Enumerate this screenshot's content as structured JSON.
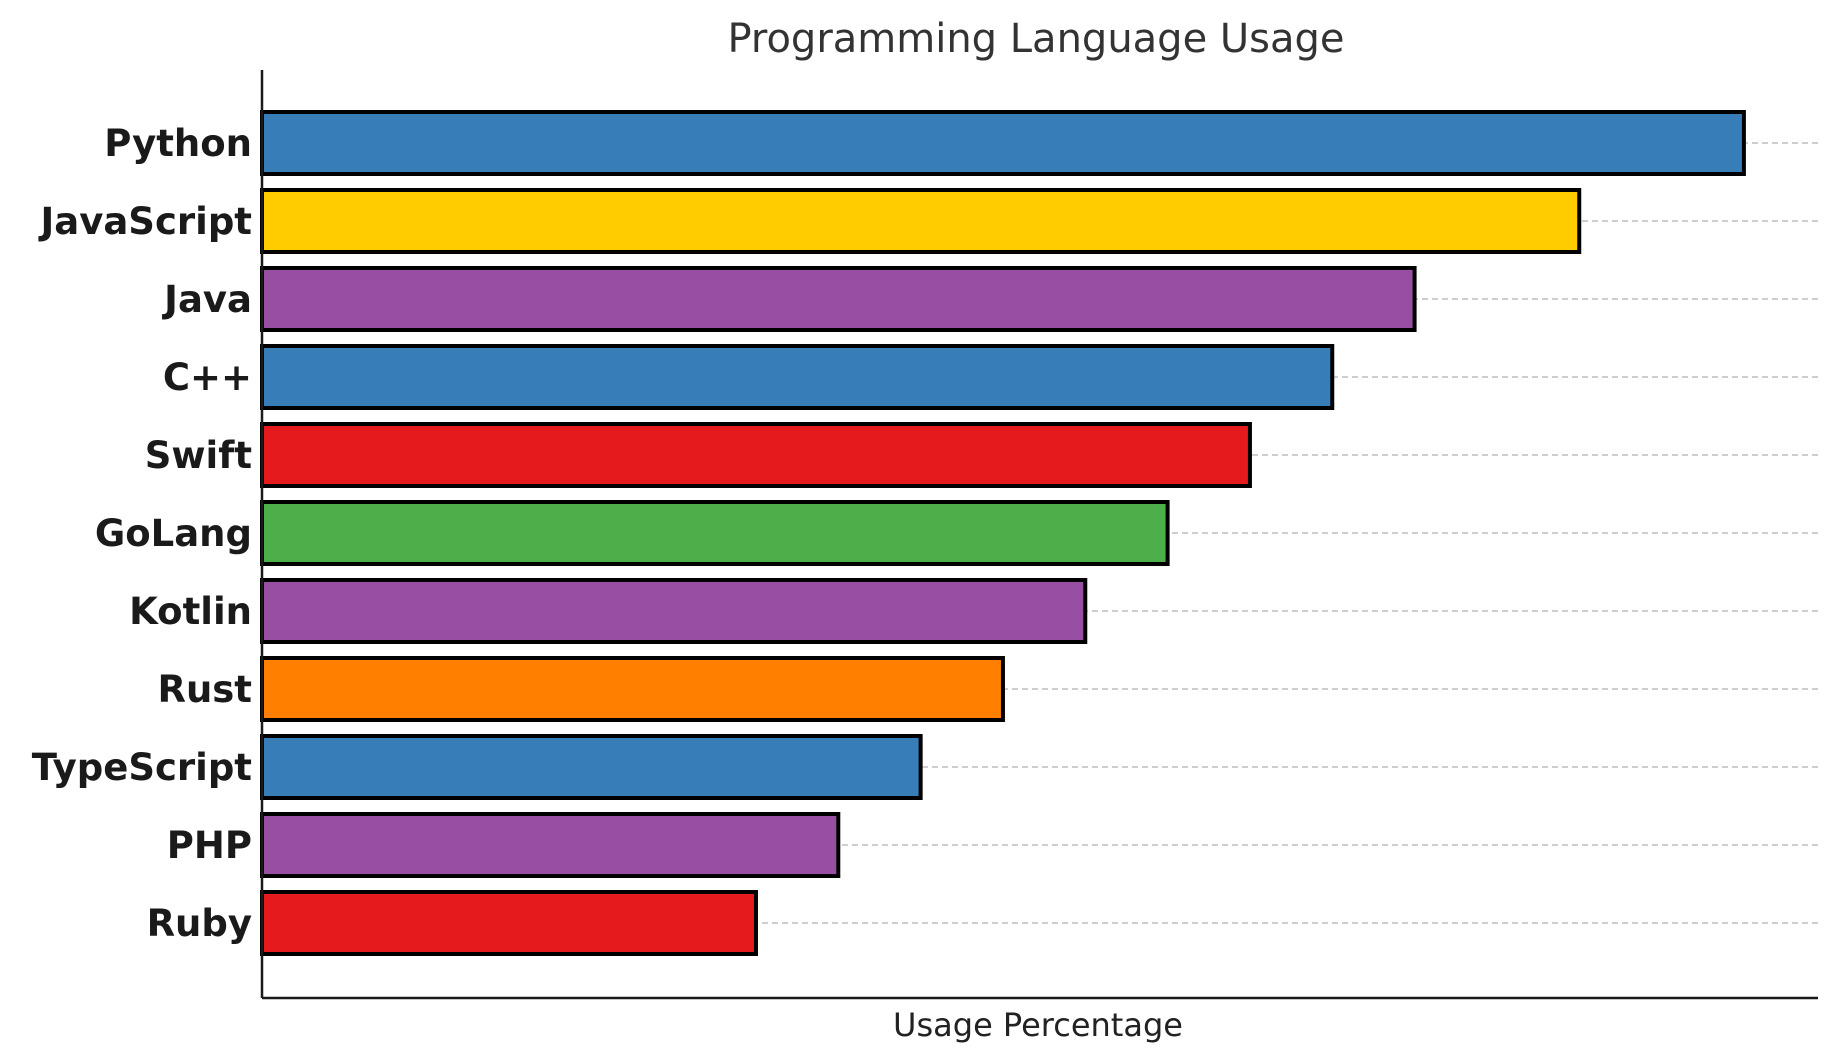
{
  "chart_data": {
    "type": "bar",
    "orientation": "horizontal",
    "title": "Programming Language Usage",
    "xlabel": "Usage Percentage",
    "ylabel": "",
    "categories": [
      "Python",
      "JavaScript",
      "Java",
      "C++",
      "Swift",
      "GoLang",
      "Kotlin",
      "Rust",
      "TypeScript",
      "PHP",
      "Ruby"
    ],
    "values": [
      90,
      80,
      70,
      65,
      60,
      55,
      50,
      45,
      40,
      35,
      30
    ],
    "colors": [
      "#377eb8",
      "#ffcc00",
      "#984ea3",
      "#377eb8",
      "#e41a1c",
      "#4daf4a",
      "#984ea3",
      "#ff7f00",
      "#377eb8",
      "#984ea3",
      "#e41a1c"
    ],
    "xlim": [
      0,
      94.5
    ],
    "grid": "horizontal-dashed",
    "x_ticks_shown": false
  }
}
